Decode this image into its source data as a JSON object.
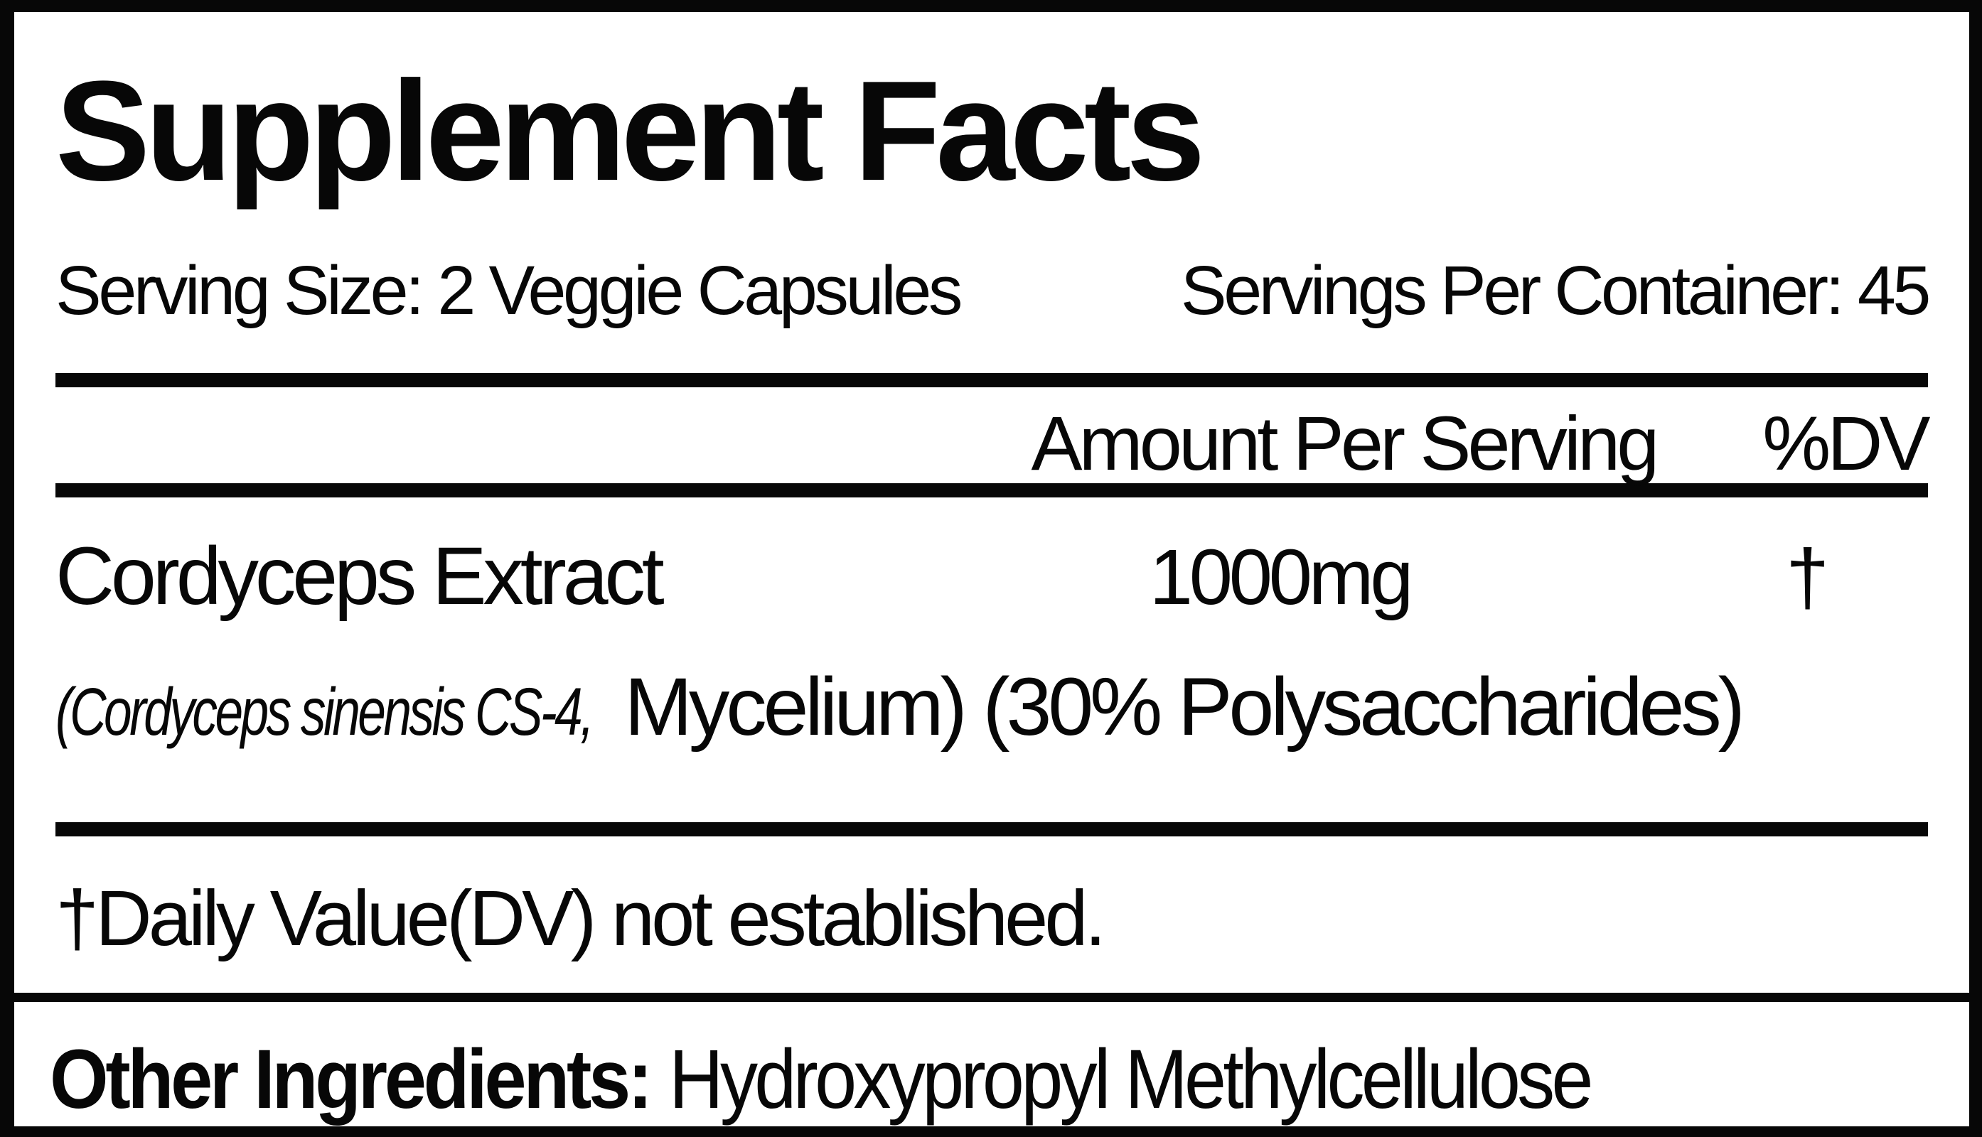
{
  "label": {
    "title": "Supplement Facts",
    "serving": {
      "serving_size": "Serving Size: 2 Veggie Capsules",
      "servings_per_container": "Servings Per Container: 45"
    },
    "columns": {
      "amount_header": "Amount Per Serving",
      "dv_header": "%DV"
    },
    "rows": [
      {
        "name": "Cordyceps Extract",
        "amount": "1000mg",
        "dv": "†",
        "detail_italic": "(Cordyceps sinensis CS-4,",
        "detail_regular": "Mycelium) (30% Polysaccharides)"
      }
    ],
    "footnote": "†Daily Value(DV) not established.",
    "other_ingredients": {
      "label": "Other Ingredients:",
      "value": "Hydroxypropyl Methylcellulose"
    },
    "colors": {
      "ink": "#070707",
      "background": "#ffffff"
    }
  }
}
